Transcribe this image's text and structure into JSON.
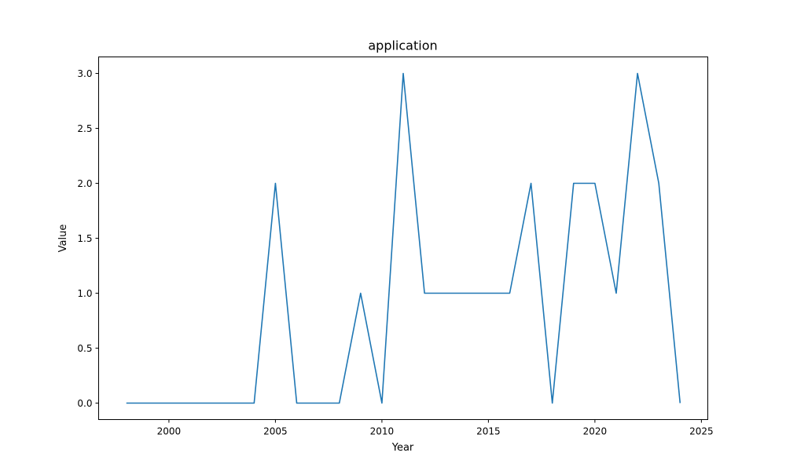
{
  "chart_data": {
    "type": "line",
    "title": "application",
    "xlabel": "Year",
    "ylabel": "Value",
    "xlim": [
      1996.7,
      2025.3
    ],
    "ylim": [
      -0.15,
      3.15
    ],
    "x_ticks": [
      2000,
      2005,
      2010,
      2015,
      2020,
      2025
    ],
    "y_ticks": [
      0.0,
      0.5,
      1.0,
      1.5,
      2.0,
      2.5,
      3.0
    ],
    "y_tick_labels": [
      "0.0",
      "0.5",
      "1.0",
      "1.5",
      "2.0",
      "2.5",
      "3.0"
    ],
    "grid": false,
    "series": [
      {
        "color": "#1f77b4",
        "x": [
          1998,
          1999,
          2000,
          2001,
          2002,
          2003,
          2004,
          2005,
          2006,
          2007,
          2008,
          2009,
          2010,
          2011,
          2012,
          2013,
          2014,
          2015,
          2016,
          2017,
          2018,
          2019,
          2020,
          2021,
          2022,
          2023,
          2024
        ],
        "values": [
          0,
          0,
          0,
          0,
          0,
          0,
          0,
          2,
          0,
          0,
          0,
          1,
          0,
          3,
          1,
          1,
          1,
          1,
          1,
          2,
          0,
          2,
          2,
          1,
          3,
          2,
          0
        ]
      }
    ]
  }
}
